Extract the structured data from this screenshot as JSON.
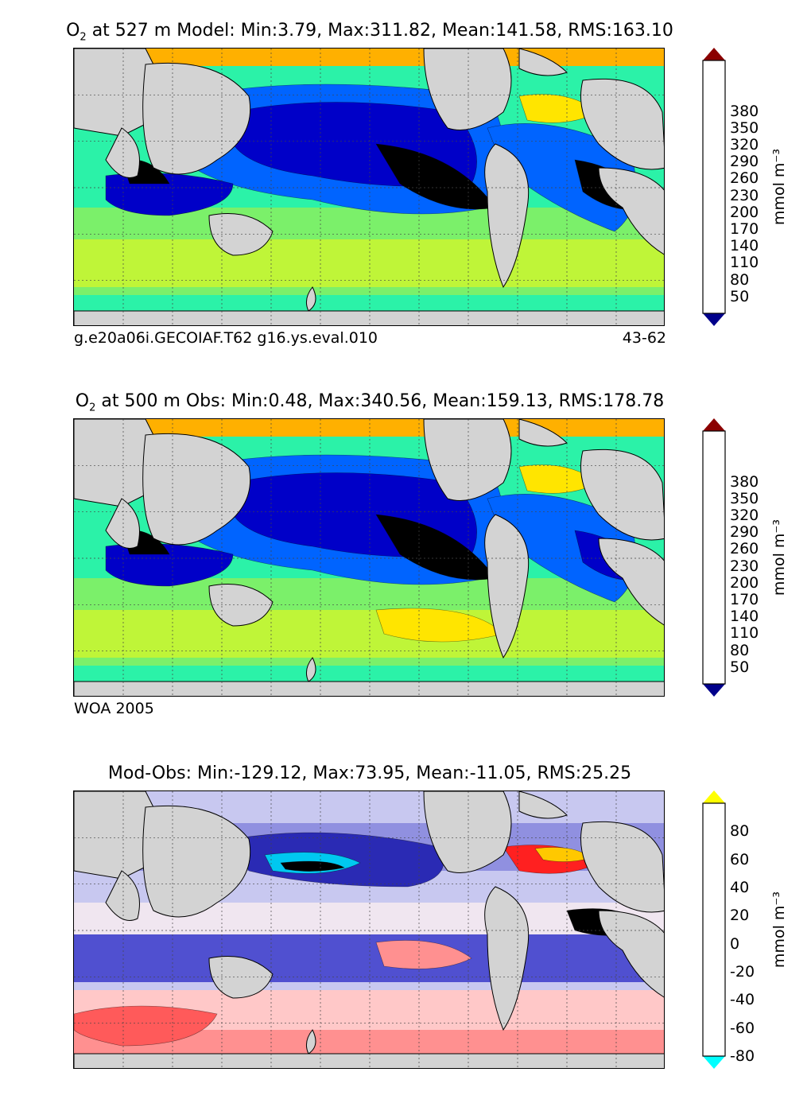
{
  "panels": [
    {
      "title_prefix": "O",
      "title_sub": "2",
      "title_rest": " at 527 m Model: Min:3.79, Max:311.82, Mean:141.58, RMS:163.10",
      "footer_left": "g.e20a06i.GECOIAF.T62 g16.ys.eval.010",
      "footer_right": "43-62",
      "colorbar": {
        "colors": [
          "#00008b",
          "#0000c8",
          "#0000ff",
          "#0064ff",
          "#00aaff",
          "#00e5ff",
          "#2bf2a8",
          "#7bf06a",
          "#bff538",
          "#ffe500",
          "#ffb000",
          "#ff8a00",
          "#ff4a00",
          "#e00000",
          "#8b0000"
        ],
        "ticks": [
          "50",
          "80",
          "110",
          "140",
          "170",
          "200",
          "230",
          "260",
          "290",
          "320",
          "350",
          "380"
        ],
        "units": "mmol m⁻³"
      }
    },
    {
      "title_prefix": "O",
      "title_sub": "2",
      "title_rest": " at 500 m Obs: Min:0.48, Max:340.56, Mean:159.13, RMS:178.78",
      "footer_left": "WOA 2005",
      "footer_right": "",
      "colorbar": {
        "colors": [
          "#00008b",
          "#0000c8",
          "#0000ff",
          "#0064ff",
          "#00aaff",
          "#00e5ff",
          "#2bf2a8",
          "#7bf06a",
          "#bff538",
          "#ffe500",
          "#ffb000",
          "#ff8a00",
          "#ff4a00",
          "#e00000",
          "#8b0000"
        ],
        "ticks": [
          "50",
          "80",
          "110",
          "140",
          "170",
          "200",
          "230",
          "260",
          "290",
          "320",
          "350",
          "380"
        ],
        "units": "mmol m⁻³"
      }
    },
    {
      "title_prefix": "",
      "title_sub": "",
      "title_rest": "Mod-Obs: Min:-129.12, Max:73.95, Mean:-11.05, RMS:25.25",
      "footer_left": "",
      "footer_right": "",
      "colorbar": {
        "colors": [
          "#00ffff",
          "#00c8f0",
          "#0078d7",
          "#0a3cb4",
          "#1414a0",
          "#2a2ab4",
          "#5050d0",
          "#9090e0",
          "#c8c8f0",
          "#f0e6f0",
          "#ffc8c8",
          "#ff9090",
          "#ff5a5a",
          "#ff2020",
          "#ff5000",
          "#ff8c00",
          "#ffc800",
          "#ffff00"
        ],
        "ticks": [
          "-80",
          "-60",
          "-40",
          "-20",
          "0",
          "20",
          "40",
          "60",
          "80"
        ],
        "units": "mmol m⁻³"
      }
    }
  ]
}
